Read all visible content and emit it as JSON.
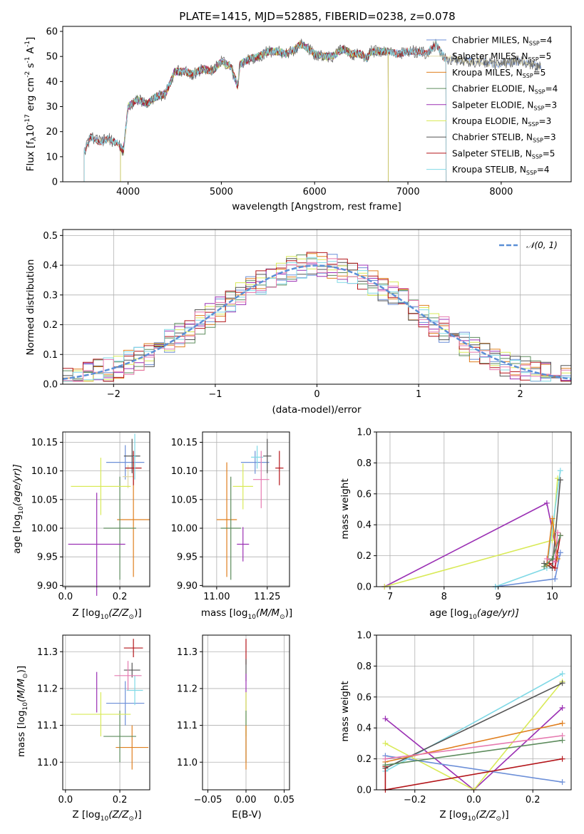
{
  "figure": {
    "title": "PLATE=1415, MJD=52885, FIBERID=0238, z=0.078"
  },
  "colors": {
    "Chabrier MILES": "#6c8fd8",
    "Salpeter MILES": "#e0d8a8",
    "Kroupa MILES": "#e07f1f",
    "Chabrier ELODIE": "#5d8c5d",
    "Salpeter ELODIE": "#9b30b4",
    "Kroupa ELODIE": "#d9ea58",
    "Chabrier STELIB": "#555555",
    "Salpeter STELIB": "#b3151a",
    "Kroupa STELIB": "#80d9e6",
    "pink": "#e67ab0",
    "normal": "#5b8fd6"
  },
  "spectrum": {
    "xlabel": "wavelength [Angstrom, rest frame]",
    "ylabel_main": "Flux [f",
    "ylabel_sub": "λ",
    "ylabel_tail": "10",
    "ylabel_exp": "-17",
    "ylabel_rest": " erg cm",
    "ylabel_exp2": "-2",
    "ylabel_rest2": " s",
    "ylabel_exp3": "-1",
    "ylabel_rest3": " A",
    "ylabel_exp4": "-1",
    "ylabel_end": "]",
    "xticks": [
      "4000",
      "5000",
      "6000",
      "7000",
      "8000"
    ],
    "yticks": [
      "0",
      "10",
      "20",
      "30",
      "40",
      "50",
      "60"
    ],
    "legend": [
      {
        "name": "Chabrier MILES",
        "nssp": "4"
      },
      {
        "name": "Salpeter MILES",
        "nssp": "5"
      },
      {
        "name": "Kroupa MILES",
        "nssp": "5"
      },
      {
        "name": "Chabrier ELODIE",
        "nssp": "4"
      },
      {
        "name": "Salpeter ELODIE",
        "nssp": "3"
      },
      {
        "name": "Kroupa ELODIE",
        "nssp": "3"
      },
      {
        "name": "Chabrier STELIB",
        "nssp": "3"
      },
      {
        "name": "Salpeter STELIB",
        "nssp": "5"
      },
      {
        "name": "Kroupa STELIB",
        "nssp": "4"
      }
    ],
    "legend_N": "N",
    "legend_sub": "SSP"
  },
  "histogram": {
    "xlabel": "(data-model)/error",
    "ylabel": "Normed distribution",
    "legend": "𝒩(0, 1)",
    "xticks": [
      "−2",
      "−1",
      "0",
      "1",
      "2"
    ],
    "yticks": [
      "0.0",
      "0.1",
      "0.2",
      "0.3",
      "0.4",
      "0.5"
    ]
  },
  "panels": {
    "age_z": {
      "xlabel": "Z [log",
      "xsub": "10",
      "xtail": "(Z/Z",
      "xsun": "⊙",
      "xend": ")]",
      "ylabel": "age  [log",
      "ysub": "10",
      "ytail": "(age/yr)]",
      "xticks": [
        "0.0",
        "0.2"
      ],
      "yticks": [
        "9.90",
        "9.95",
        "10.00",
        "10.05",
        "10.10",
        "10.15"
      ]
    },
    "age_mass": {
      "xlabel": "mass [log",
      "xsub": "10",
      "xtail": "(M/M",
      "xsun": "⊙",
      "xend": ")]",
      "xticks": [
        "11.00",
        "11.25"
      ],
      "yticks": [
        "9.90",
        "9.95",
        "10.00",
        "10.05",
        "10.10",
        "10.15"
      ]
    },
    "weight_age": {
      "xlabel": "age  [log",
      "xsub": "10",
      "xtail": "(age/yr)]",
      "ylabel": "mass weight",
      "xticks": [
        "7",
        "8",
        "9",
        "10"
      ],
      "yticks": [
        "0.0",
        "0.2",
        "0.4",
        "0.6",
        "0.8",
        "1.0"
      ]
    },
    "mass_z": {
      "xlabel": "Z [log",
      "xsub": "10",
      "xtail": "(Z/Z",
      "xsun": "⊙",
      "xend": ")]",
      "ylabel": "mass [log",
      "ysub": "10",
      "ytail": "(M/M",
      "ysun": "⊙",
      "yend": ")]",
      "xticks": [
        "0.0",
        "0.2"
      ],
      "yticks": [
        "11.0",
        "11.1",
        "11.2",
        "11.3"
      ]
    },
    "mass_ebv": {
      "xlabel": "E(B-V)",
      "xticks": [
        "−0.05",
        "0.00",
        "0.05"
      ],
      "yticks": [
        "11.0",
        "11.1",
        "11.2",
        "11.3"
      ]
    },
    "weight_z": {
      "xlabel": "Z [log",
      "xsub": "10",
      "xtail": "(Z/Z",
      "xsun": "⊙",
      "xend": ")]",
      "ylabel": "mass weight",
      "xticks": [
        "−0.2",
        "0.0",
        "0.2"
      ],
      "yticks": [
        "0.0",
        "0.2",
        "0.4",
        "0.6",
        "0.8",
        "1.0"
      ]
    }
  },
  "chart_data": [
    {
      "type": "line",
      "title": "PLATE=1415, MJD=52885, FIBERID=0238, z=0.078",
      "xlabel": "wavelength [Angstrom, rest frame]",
      "ylabel": "Flux [fλ10^-17 erg cm^-2 s^-1 A^-1]",
      "xlim": [
        3300,
        8750
      ],
      "ylim": [
        0,
        62
      ],
      "x": [
        3530,
        3600,
        3700,
        3800,
        3900,
        3950,
        4000,
        4100,
        4200,
        4300,
        4400,
        4500,
        4600,
        4700,
        4800,
        4900,
        5000,
        5100,
        5175,
        5200,
        5300,
        5400,
        5500,
        5600,
        5700,
        5800,
        5850,
        5900,
        6000,
        6100,
        6200,
        6300,
        6400,
        6500,
        6563,
        6600,
        6700,
        6800,
        6900,
        7000,
        7100,
        7200,
        7300,
        7400,
        7500,
        7600,
        7700,
        7800,
        7900,
        8000,
        8100,
        8200,
        8300,
        8400,
        8500
      ],
      "series": [
        {
          "name": "Chabrier MILES",
          "values": [
            12,
            18,
            16,
            17,
            15,
            12,
            30,
            33,
            31,
            34,
            35,
            44,
            44,
            43,
            45,
            44,
            48,
            46,
            38,
            47,
            49,
            50,
            52,
            52,
            51,
            53,
            55,
            54,
            51,
            50,
            50,
            53,
            51,
            51,
            49,
            52,
            52,
            52,
            51,
            52,
            52,
            51,
            55,
            49,
            49,
            48,
            48,
            48,
            47,
            47,
            48,
            48,
            47,
            46,
            46
          ]
        }
      ]
    },
    {
      "type": "line",
      "xlabel": "(data-model)/error",
      "ylabel": "Normed distribution",
      "xlim": [
        -2.5,
        2.5
      ],
      "ylim": [
        0,
        0.52
      ],
      "x": [
        -2.5,
        -2.3,
        -2.1,
        -1.9,
        -1.7,
        -1.5,
        -1.3,
        -1.1,
        -0.9,
        -0.7,
        -0.5,
        -0.3,
        -0.1,
        0.1,
        0.3,
        0.5,
        0.7,
        0.9,
        1.1,
        1.3,
        1.5,
        1.7,
        1.9,
        2.1,
        2.3,
        2.5
      ],
      "series": [
        {
          "name": "𝒩(0, 1)",
          "values": [
            0.018,
            0.028,
            0.044,
            0.066,
            0.094,
            0.13,
            0.171,
            0.218,
            0.266,
            0.312,
            0.352,
            0.381,
            0.397,
            0.397,
            0.381,
            0.352,
            0.312,
            0.266,
            0.218,
            0.171,
            0.13,
            0.094,
            0.066,
            0.044,
            0.028,
            0.018
          ]
        }
      ]
    },
    {
      "type": "scatter",
      "xlabel": "Z [log10(Z/Z⊙)]",
      "ylabel": "age [log10(age/yr)]",
      "xlim": [
        -0.01,
        0.31
      ],
      "ylim": [
        9.898,
        10.168
      ],
      "series": [
        {
          "name": "Chabrier MILES",
          "x": 0.22,
          "y": 10.115,
          "xerr": 0.07,
          "yerr": 0.03
        },
        {
          "name": "Salpeter MILES",
          "x": 0.23,
          "y": 10.09,
          "xerr": 0.02,
          "yerr": 0.02
        },
        {
          "name": "Kroupa MILES",
          "x": 0.25,
          "y": 10.015,
          "xerr": 0.06,
          "yerr": 0.1
        },
        {
          "name": "Chabrier ELODIE",
          "x": 0.2,
          "y": 10.0,
          "xerr": 0.06,
          "yerr": 0.09
        },
        {
          "name": "Salpeter ELODIE",
          "x": 0.115,
          "y": 9.972,
          "xerr": 0.105,
          "yerr": 0.09
        },
        {
          "name": "Kroupa ELODIE",
          "x": 0.13,
          "y": 10.073,
          "xerr": 0.11,
          "yerr": 0.05
        },
        {
          "name": "Chabrier STELIB",
          "x": 0.245,
          "y": 10.126,
          "xerr": 0.03,
          "yerr": 0.03
        },
        {
          "name": "Salpeter STELIB",
          "x": 0.25,
          "y": 10.105,
          "xerr": 0.03,
          "yerr": 0.03
        },
        {
          "name": "Kroupa STELIB",
          "x": 0.255,
          "y": 10.125,
          "xerr": 0.005,
          "yerr": 0.04
        }
      ]
    },
    {
      "type": "scatter",
      "xlabel": "mass [log10(M/M⊙)]",
      "xlim": [
        10.93,
        11.36
      ],
      "ylim": [
        9.898,
        10.168
      ],
      "series": [
        {
          "name": "Chabrier MILES",
          "x": 11.19,
          "y": 10.115,
          "xerr": 0.07,
          "yerr": 0.02
        },
        {
          "name": "Kroupa MILES",
          "x": 11.05,
          "y": 10.015,
          "xerr": 0.05,
          "yerr": 0.1
        },
        {
          "name": "Chabrier ELODIE",
          "x": 11.07,
          "y": 10.0,
          "xerr": 0.05,
          "yerr": 0.09
        },
        {
          "name": "Salpeter ELODIE",
          "x": 11.13,
          "y": 9.972,
          "xerr": 0.03,
          "yerr": 0.03
        },
        {
          "name": "Kroupa ELODIE",
          "x": 11.13,
          "y": 10.073,
          "xerr": 0.05,
          "yerr": 0.04
        },
        {
          "name": "Chabrier STELIB",
          "x": 11.25,
          "y": 10.126,
          "xerr": 0.02,
          "yerr": 0.03
        },
        {
          "name": "Salpeter STELIB",
          "x": 11.31,
          "y": 10.105,
          "xerr": 0.02,
          "yerr": 0.03
        },
        {
          "name": "Kroupa STELIB",
          "x": 11.2,
          "y": 10.124,
          "xerr": 0.03,
          "yerr": 0.02
        },
        {
          "name": "pink",
          "x": 11.22,
          "y": 10.085,
          "xerr": 0.04,
          "yerr": 0.05
        }
      ]
    },
    {
      "type": "line",
      "xlabel": "age [log10(age/yr)]",
      "ylabel": "mass weight",
      "xlim": [
        6.75,
        10.35
      ],
      "ylim": [
        0,
        1
      ],
      "series": [
        {
          "name": "Salpeter ELODIE",
          "x": [
            6.9,
            9.9,
            10.1
          ],
          "y": [
            0.0,
            0.54,
            0.2
          ]
        },
        {
          "name": "Kroupa ELODIE",
          "x": [
            6.9,
            10.0,
            10.1
          ],
          "y": [
            0.0,
            0.3,
            0.7
          ]
        },
        {
          "name": "Chabrier MILES",
          "x": [
            8.95,
            10.05,
            10.15
          ],
          "y": [
            0.0,
            0.05,
            0.22
          ]
        },
        {
          "name": "Kroupa STELIB",
          "x": [
            8.95,
            9.9,
            10.15
          ],
          "y": [
            0.0,
            0.12,
            0.75
          ]
        },
        {
          "name": "Chabrier STELIB",
          "x": [
            9.85,
            10.0,
            10.15
          ],
          "y": [
            0.15,
            0.12,
            0.69
          ]
        },
        {
          "name": "Salpeter STELIB",
          "x": [
            9.95,
            10.05,
            10.15
          ],
          "y": [
            0.15,
            0.12,
            0.33
          ]
        },
        {
          "name": "Kroupa MILES",
          "x": [
            9.9,
            10.0,
            10.1
          ],
          "y": [
            0.14,
            0.44,
            0.18
          ]
        },
        {
          "name": "pink",
          "x": [
            9.9,
            10.05,
            10.1
          ],
          "y": [
            0.18,
            0.16,
            0.35
          ]
        },
        {
          "name": "Chabrier ELODIE",
          "x": [
            9.85,
            10.0,
            10.15
          ],
          "y": [
            0.13,
            0.18,
            0.33
          ]
        }
      ]
    },
    {
      "type": "scatter",
      "xlabel": "Z [log10(Z/Z⊙)]",
      "ylabel": "mass [log10(M/M⊙)]",
      "xlim": [
        -0.01,
        0.31
      ],
      "ylim": [
        10.925,
        11.345
      ],
      "series": [
        {
          "name": "Chabrier MILES",
          "x": 0.22,
          "y": 11.16,
          "xerr": 0.07,
          "yerr": 0.06
        },
        {
          "name": "Kroupa MILES",
          "x": 0.245,
          "y": 11.04,
          "xerr": 0.06,
          "yerr": 0.06
        },
        {
          "name": "Chabrier ELODIE",
          "x": 0.2,
          "y": 11.07,
          "xerr": 0.06,
          "yerr": 0.07
        },
        {
          "name": "Salpeter ELODIE",
          "x": 0.115,
          "y": 11.19,
          "xerr": 0.0,
          "yerr": 0.055
        },
        {
          "name": "Kroupa ELODIE",
          "x": 0.13,
          "y": 11.13,
          "xerr": 0.11,
          "yerr": 0.06
        },
        {
          "name": "Chabrier STELIB",
          "x": 0.245,
          "y": 11.25,
          "xerr": 0.03,
          "yerr": 0.02
        },
        {
          "name": "Salpeter STELIB",
          "x": 0.25,
          "y": 11.31,
          "xerr": 0.035,
          "yerr": 0.025
        },
        {
          "name": "Kroupa STELIB",
          "x": 0.255,
          "y": 11.195,
          "xerr": 0.03,
          "yerr": 0.04
        },
        {
          "name": "pink",
          "x": 0.23,
          "y": 11.235,
          "xerr": 0.05,
          "yerr": 0.04
        }
      ]
    },
    {
      "type": "scatter",
      "xlabel": "E(B-V)",
      "xlim": [
        -0.057,
        0.057
      ],
      "ylim": [
        10.925,
        11.345
      ],
      "series": [
        {
          "name": "Salpeter STELIB",
          "x": 0.0,
          "y": 11.3,
          "xerr": 0.0,
          "yerr": 0.035
        },
        {
          "name": "Chabrier STELIB",
          "x": 0.0,
          "y": 11.25,
          "xerr": 0.0,
          "yerr": 0.03
        },
        {
          "name": "Salpeter ELODIE",
          "x": 0.0,
          "y": 11.19,
          "xerr": 0.0,
          "yerr": 0.05
        },
        {
          "name": "Kroupa ELODIE",
          "x": 0.0,
          "y": 11.13,
          "xerr": 0.0,
          "yerr": 0.06
        },
        {
          "name": "Chabrier ELODIE",
          "x": 0.0,
          "y": 11.07,
          "xerr": 0.0,
          "yerr": 0.07
        },
        {
          "name": "Kroupa MILES",
          "x": 0.0,
          "y": 11.04,
          "xerr": 0.0,
          "yerr": 0.06
        }
      ]
    },
    {
      "type": "line",
      "xlabel": "Z [log10(Z/Z⊙)]",
      "ylabel": "mass weight",
      "xlim": [
        -0.33,
        0.33
      ],
      "ylim": [
        0,
        1
      ],
      "series": [
        {
          "name": "Salpeter ELODIE",
          "x": [
            -0.3,
            0.0,
            0.3
          ],
          "y": [
            0.46,
            0.0,
            0.53
          ]
        },
        {
          "name": "Kroupa ELODIE",
          "x": [
            -0.3,
            0.0,
            0.3
          ],
          "y": [
            0.3,
            0.0,
            0.7
          ]
        },
        {
          "name": "Chabrier MILES",
          "x": [
            -0.3,
            0.3
          ],
          "y": [
            0.22,
            0.05
          ]
        },
        {
          "name": "Kroupa STELIB",
          "x": [
            -0.3,
            0.3
          ],
          "y": [
            0.12,
            0.75
          ]
        },
        {
          "name": "Chabrier STELIB",
          "x": [
            -0.3,
            0.3
          ],
          "y": [
            0.14,
            0.69
          ]
        },
        {
          "name": "Salpeter STELIB",
          "x": [
            -0.3,
            -0.3,
            0.3
          ],
          "y": [
            0.15,
            0.0,
            0.2
          ]
        },
        {
          "name": "Kroupa MILES",
          "x": [
            -0.3,
            0.3
          ],
          "y": [
            0.18,
            0.43
          ]
        },
        {
          "name": "pink",
          "x": [
            -0.3,
            0.3
          ],
          "y": [
            0.2,
            0.35
          ]
        },
        {
          "name": "Chabrier ELODIE",
          "x": [
            -0.3,
            0.3
          ],
          "y": [
            0.16,
            0.32
          ]
        }
      ]
    }
  ]
}
